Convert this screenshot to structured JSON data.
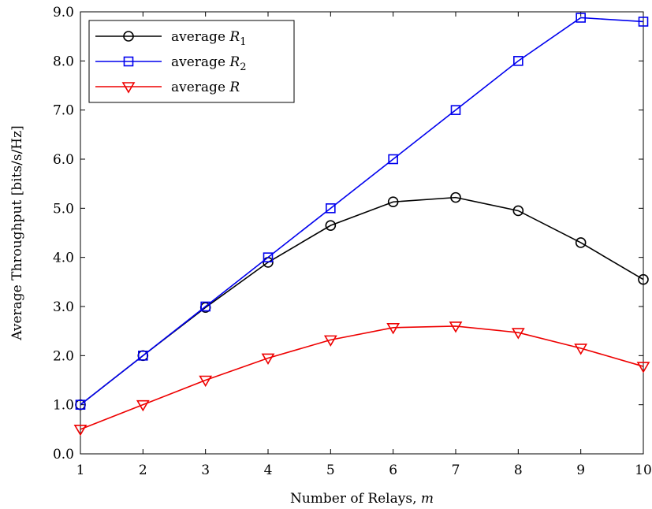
{
  "chart_data": {
    "type": "line",
    "xlabel": "Number of Relays, ",
    "xlabel_var": "m",
    "ylabel": "Average Throughput [bits/s/Hz]",
    "xlim": [
      1,
      10
    ],
    "ylim": [
      0,
      9
    ],
    "x_ticks": [
      "1",
      "2",
      "3",
      "4",
      "5",
      "6",
      "7",
      "8",
      "9",
      "10"
    ],
    "y_ticks": [
      "0.0",
      "1.0",
      "2.0",
      "3.0",
      "4.0",
      "5.0",
      "6.0",
      "7.0",
      "8.0",
      "9.0"
    ],
    "grid": false,
    "legend_position": "top-left",
    "x": [
      1,
      2,
      3,
      4,
      5,
      6,
      7,
      8,
      9,
      10
    ],
    "series": [
      {
        "name": "average R1",
        "legend_text": "average ",
        "legend_var": "R",
        "legend_sub": "1",
        "marker": "circle",
        "color": "#000000",
        "values": [
          1.0,
          2.0,
          2.98,
          3.9,
          4.65,
          5.13,
          5.22,
          4.95,
          4.3,
          3.55
        ]
      },
      {
        "name": "average R2",
        "legend_text": "average ",
        "legend_var": "R",
        "legend_sub": "2",
        "marker": "square",
        "color": "#0000ee",
        "values": [
          1.0,
          2.0,
          3.0,
          4.0,
          5.0,
          6.0,
          7.0,
          8.0,
          8.88,
          8.8
        ]
      },
      {
        "name": "average R",
        "legend_text": "average ",
        "legend_var": "R",
        "legend_sub": "",
        "marker": "triangle-down",
        "color": "#ee0000",
        "values": [
          0.5,
          1.0,
          1.5,
          1.95,
          2.32,
          2.57,
          2.6,
          2.47,
          2.15,
          1.78
        ]
      }
    ]
  }
}
